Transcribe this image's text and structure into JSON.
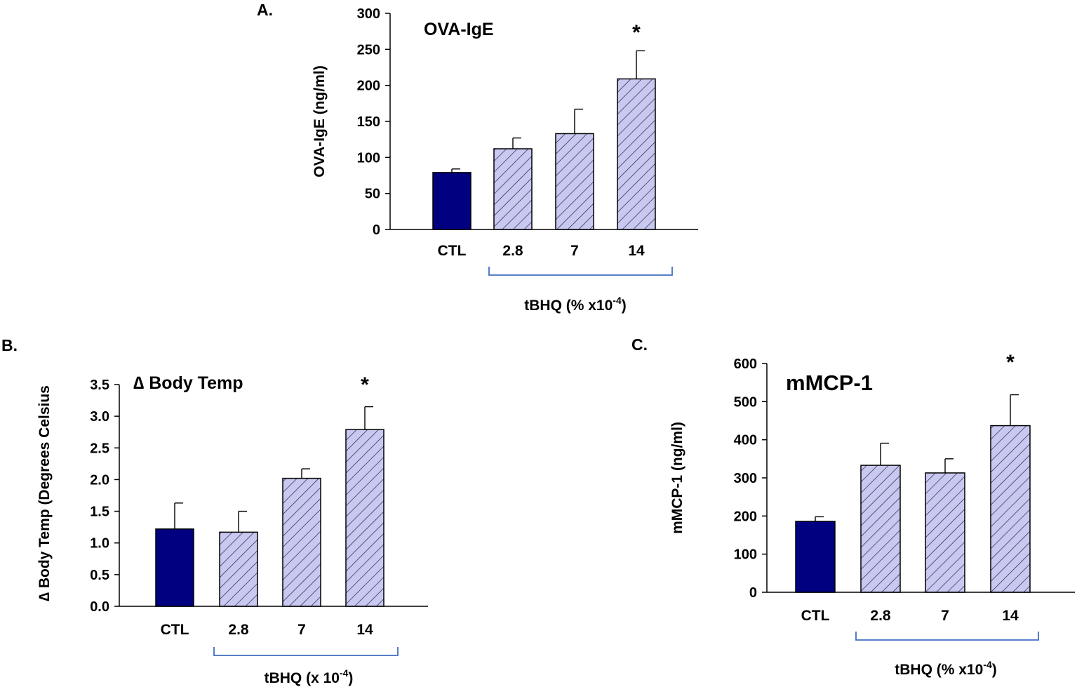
{
  "colors": {
    "ctl_fill": "#000080",
    "hatch_bg": "#C8C8F0",
    "hatch_line": "#1a1a3a",
    "axis": "#000000",
    "bracket": "#3F6FC2"
  },
  "chart_data": [
    {
      "panel_label": "A.",
      "type": "bar",
      "title": "OVA-IgE",
      "ylabel": "OVA-IgE (ng/ml)",
      "ylim": [
        0,
        300
      ],
      "yticks": [
        "0",
        "50",
        "100",
        "150",
        "200",
        "250",
        "300"
      ],
      "categories": [
        "CTL",
        "2.8",
        "7",
        "14"
      ],
      "values": [
        79,
        112,
        133,
        209
      ],
      "errors": [
        5,
        15,
        34,
        39
      ],
      "significance": [
        "",
        "",
        "",
        "*"
      ],
      "group_label": {
        "main": "tBHQ (% x10",
        "sup": "-4",
        "end": ")"
      }
    },
    {
      "panel_label": "B.",
      "type": "bar",
      "title": "∆ Body Temp",
      "ylabel": "∆ Body Temp (Degrees Celsius",
      "ylim": [
        0,
        3.5
      ],
      "yticks": [
        "0.0",
        "0.5",
        "1.0",
        "1.5",
        "2.0",
        "2.5",
        "3.0",
        "3.5"
      ],
      "categories": [
        "CTL",
        "2.8",
        "7",
        "14"
      ],
      "values": [
        1.22,
        1.17,
        2.02,
        2.79
      ],
      "errors": [
        0.41,
        0.33,
        0.15,
        0.36
      ],
      "significance": [
        "",
        "",
        "",
        "*"
      ],
      "group_label": {
        "main": "tBHQ (x 10",
        "sup": "-4",
        "end": ")"
      }
    },
    {
      "panel_label": "C.",
      "type": "bar",
      "title": "mMCP-1",
      "ylabel": "mMCP-1 (ng/ml)",
      "ylim": [
        0,
        600
      ],
      "yticks": [
        "0",
        "100",
        "200",
        "300",
        "400",
        "500",
        "600"
      ],
      "categories": [
        "CTL",
        "2.8",
        "7",
        "14"
      ],
      "values": [
        186,
        333,
        313,
        437
      ],
      "errors": [
        12,
        58,
        37,
        81
      ],
      "significance": [
        "",
        "",
        "",
        "*"
      ],
      "group_label": {
        "main": "tBHQ (% x10",
        "sup": "-4",
        "end": ")"
      }
    }
  ]
}
